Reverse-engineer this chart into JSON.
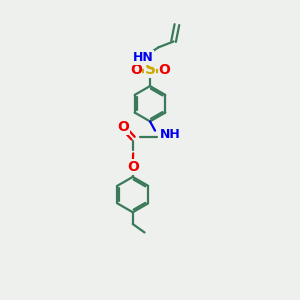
{
  "background_color": "#edf0ed",
  "atom_colors": {
    "C": "#3a7a5a",
    "N": "#0000ee",
    "O": "#ee0000",
    "S": "#ccaa00",
    "H": "#808080"
  },
  "line_color": "#3a7a5a",
  "line_width": 1.6,
  "figsize": [
    3.0,
    3.0
  ],
  "dpi": 100,
  "xlim": [
    -1.2,
    1.2
  ],
  "ylim": [
    -2.2,
    1.3
  ]
}
